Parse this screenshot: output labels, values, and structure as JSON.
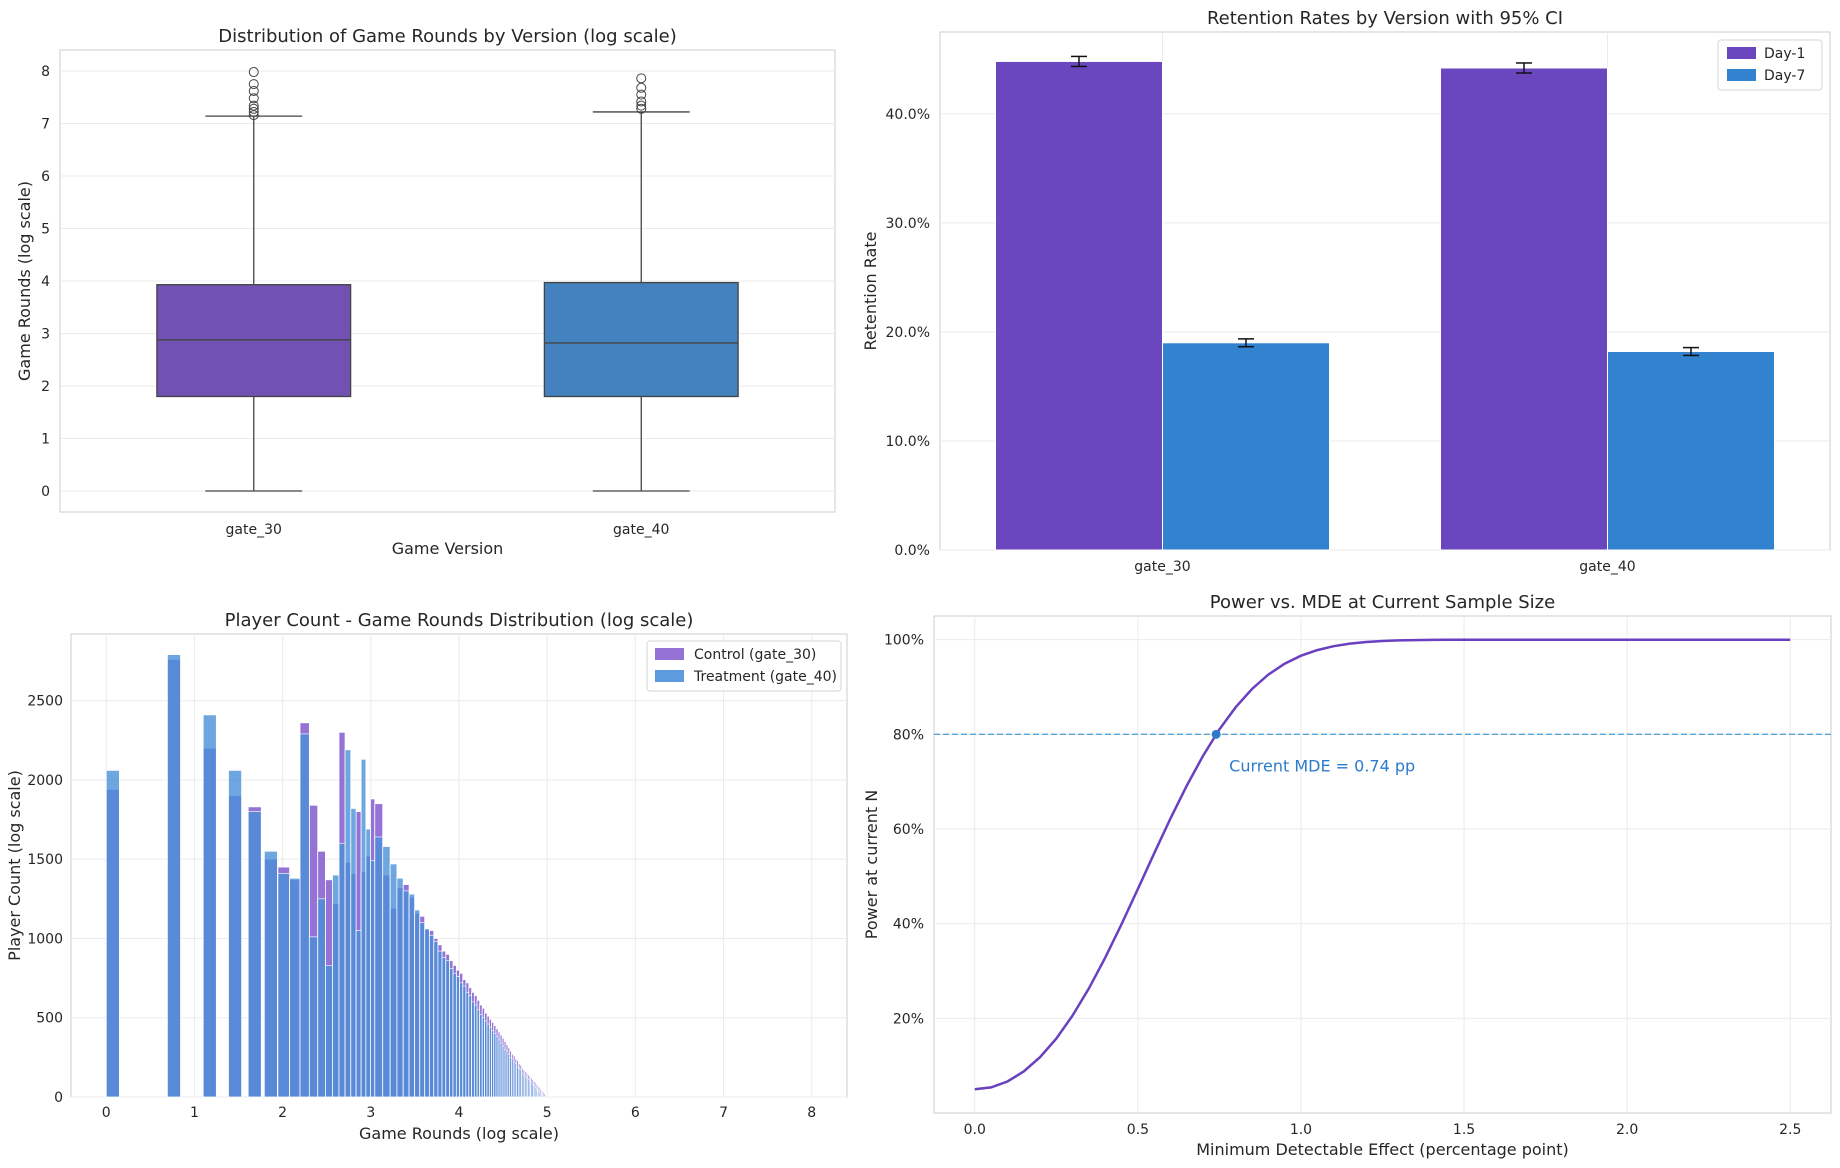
{
  "chart_data": [
    {
      "type": "box",
      "title": "Distribution of Game Rounds by Version (log scale)",
      "xlabel": "Game Version",
      "ylabel": "Game Rounds (log scale)",
      "ylim": [
        -0.4,
        8.4
      ],
      "yticks": [
        0,
        1,
        2,
        3,
        4,
        5,
        6,
        7,
        8
      ],
      "grid": true,
      "categories": [
        "gate_30",
        "gate_40"
      ],
      "boxes": [
        {
          "category": "gate_30",
          "min": 0,
          "q1": 1.8,
          "median": 2.88,
          "q3": 3.93,
          "whisker_high": 7.14,
          "fliers": [
            7.16,
            7.22,
            7.28,
            7.34,
            7.48,
            7.62,
            7.75,
            7.98
          ],
          "color": "#7152b3"
        },
        {
          "category": "gate_40",
          "min": 0,
          "q1": 1.8,
          "median": 2.82,
          "q3": 3.97,
          "whisker_high": 7.22,
          "fliers": [
            7.28,
            7.34,
            7.42,
            7.55,
            7.68,
            7.86
          ],
          "color": "#4382bf"
        }
      ]
    },
    {
      "type": "bar",
      "title": "Retention Rates by Version with 95% CI",
      "xlabel": "",
      "ylabel": "Retention Rate",
      "ylim": [
        0,
        0.475
      ],
      "yticks": [
        0,
        0.1,
        0.2,
        0.3,
        0.4
      ],
      "ytick_labels": [
        "0.0%",
        "10.0%",
        "20.0%",
        "30.0%",
        "40.0%"
      ],
      "grid": true,
      "legend": "top-right",
      "categories": [
        "gate_30",
        "gate_40"
      ],
      "series": [
        {
          "name": "Day-1",
          "values": [
            0.448,
            0.442
          ],
          "ci": [
            0.0046,
            0.0046
          ],
          "color": "#6a46bf"
        },
        {
          "name": "Day-7",
          "values": [
            0.19,
            0.182
          ],
          "ci": [
            0.0036,
            0.0036
          ],
          "color": "#3182cf"
        }
      ]
    },
    {
      "type": "histogram",
      "title": "Player Count - Game Rounds Distribution (log scale)",
      "xlabel": "Game Rounds (log scale)",
      "ylabel": "Player Count (log scale)",
      "xlim": [
        -0.4,
        8.4
      ],
      "ylim": [
        0,
        2920
      ],
      "xticks": [
        0,
        1,
        2,
        3,
        4,
        5,
        6,
        7,
        8
      ],
      "yticks": [
        0,
        500,
        1000,
        1500,
        2000,
        2500
      ],
      "grid": true,
      "legend": "top-right",
      "bins": [
        [
          0,
          1940,
          2060
        ],
        [
          0.693,
          2760,
          2790
        ],
        [
          1.099,
          2200,
          2410
        ],
        [
          1.386,
          1900,
          2060
        ],
        [
          1.609,
          1830,
          1800
        ],
        [
          1.792,
          1500,
          1550
        ],
        [
          1.946,
          1450,
          1410
        ],
        [
          2.079,
          1370,
          1380
        ],
        [
          2.197,
          2360,
          2290
        ],
        [
          2.303,
          1840,
          1010
        ],
        [
          2.398,
          1550,
          1250
        ],
        [
          2.485,
          1370,
          830
        ],
        [
          2.565,
          1220,
          1400
        ],
        [
          2.639,
          2300,
          1600
        ],
        [
          2.708,
          1480,
          2190
        ],
        [
          2.773,
          1410,
          1820
        ],
        [
          2.833,
          1800,
          1050
        ],
        [
          2.89,
          1420,
          2130
        ],
        [
          2.944,
          1520,
          1690
        ],
        [
          2.996,
          1880,
          1490
        ],
        [
          3.045,
          1850,
          1640
        ],
        [
          3.135,
          1400,
          1580
        ],
        [
          3.219,
          1190,
          1470
        ],
        [
          3.296,
          1320,
          1380
        ],
        [
          3.367,
          1340,
          1300
        ],
        [
          3.434,
          1260,
          1280
        ],
        [
          3.497,
          1160,
          1180
        ],
        [
          3.555,
          1140,
          1100
        ],
        [
          3.611,
          1060,
          1060
        ],
        [
          3.664,
          1050,
          1020
        ],
        [
          3.714,
          1000,
          980
        ],
        [
          3.761,
          960,
          920
        ],
        [
          3.807,
          920,
          880
        ],
        [
          3.85,
          900,
          860
        ],
        [
          3.892,
          860,
          810
        ],
        [
          3.932,
          830,
          780
        ],
        [
          3.97,
          800,
          760
        ],
        [
          4.007,
          780,
          720
        ],
        [
          4.043,
          740,
          700
        ],
        [
          4.078,
          720,
          660
        ],
        [
          4.111,
          690,
          640
        ],
        [
          4.143,
          660,
          600
        ],
        [
          4.174,
          640,
          580
        ],
        [
          4.205,
          610,
          550
        ],
        [
          4.234,
          580,
          520
        ],
        [
          4.263,
          560,
          500
        ],
        [
          4.29,
          530,
          480
        ],
        [
          4.317,
          510,
          460
        ],
        [
          4.344,
          490,
          440
        ],
        [
          4.369,
          470,
          420
        ],
        [
          4.394,
          450,
          400
        ],
        [
          4.419,
          430,
          380
        ],
        [
          4.443,
          410,
          360
        ],
        [
          4.466,
          390,
          340
        ],
        [
          4.489,
          370,
          320
        ],
        [
          4.511,
          350,
          300
        ],
        [
          4.533,
          330,
          290
        ],
        [
          4.554,
          310,
          270
        ],
        [
          4.575,
          290,
          250
        ],
        [
          4.595,
          270,
          240
        ],
        [
          4.615,
          260,
          220
        ],
        [
          4.635,
          240,
          210
        ],
        [
          4.654,
          230,
          190
        ],
        [
          4.673,
          210,
          180
        ],
        [
          4.691,
          200,
          170
        ],
        [
          4.71,
          180,
          150
        ],
        [
          4.727,
          170,
          140
        ],
        [
          4.745,
          160,
          130
        ],
        [
          4.762,
          150,
          120
        ],
        [
          4.779,
          140,
          110
        ],
        [
          4.796,
          130,
          100
        ],
        [
          4.812,
          120,
          90
        ],
        [
          4.828,
          110,
          80
        ],
        [
          4.844,
          100,
          70
        ],
        [
          4.86,
          90,
          60
        ],
        [
          4.875,
          80,
          50
        ],
        [
          4.89,
          70,
          40
        ],
        [
          4.905,
          60,
          30
        ],
        [
          4.92,
          50,
          20
        ],
        [
          4.934,
          40,
          10
        ],
        [
          4.949,
          30,
          0
        ],
        [
          4.963,
          20,
          0
        ]
      ],
      "series": [
        {
          "name": "Control (gate_30)",
          "color": "#8a63d2"
        },
        {
          "name": "Treatment (gate_40)",
          "color": "#4a90d9"
        }
      ]
    },
    {
      "type": "line",
      "title": "Power vs. MDE at Current Sample Size",
      "xlabel": "Minimum Detectable Effect (percentage point)",
      "ylabel": "Power at current N",
      "xlim": [
        -0.125,
        2.625
      ],
      "ylim": [
        0,
        1.05
      ],
      "xticks": [
        0,
        0.5,
        1,
        1.5,
        2,
        2.5
      ],
      "xtick_labels": [
        "0.0",
        "0.5",
        "1.0",
        "1.5",
        "2.0",
        "2.5"
      ],
      "yticks": [
        0.2,
        0.4,
        0.6,
        0.8,
        1.0
      ],
      "ytick_labels": [
        "20%",
        "40%",
        "60%",
        "80%",
        "100%"
      ],
      "grid": true,
      "series": [
        {
          "name": "",
          "color": "#6a3fc0",
          "x_range": [
            0,
            2.5
          ],
          "curve": "two-sided z-test power",
          "alpha": 0.05,
          "mde_at_80": 0.74
        }
      ],
      "reference_line": {
        "y": 0.8,
        "color": "#5aa3d8"
      },
      "marker": {
        "x": 0.74,
        "y": 0.8,
        "color": "#2b7bcc"
      },
      "annotation": "Current MDE = 0.74 pp"
    }
  ]
}
